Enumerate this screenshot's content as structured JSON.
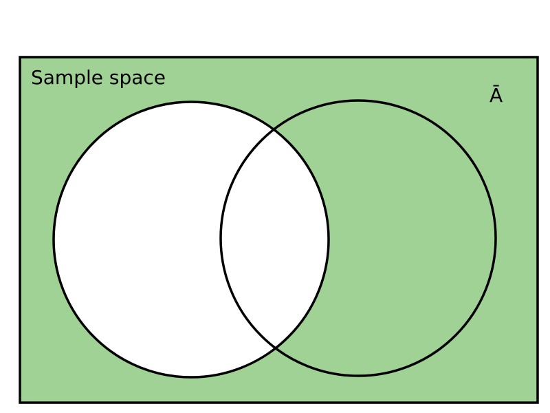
{
  "diagram": {
    "sample_space_label": "Sample space",
    "complement_label": "Ā",
    "colors": {
      "shaded": "#a0d296",
      "unshaded": "#ffffff",
      "outline": "#000000"
    }
  }
}
